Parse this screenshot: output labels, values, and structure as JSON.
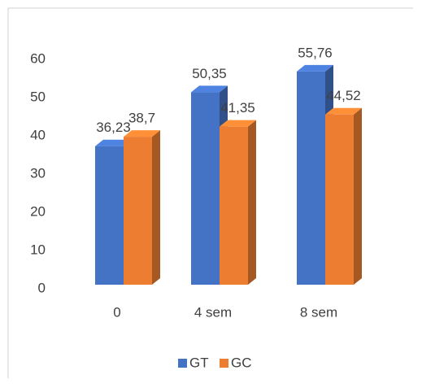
{
  "chart_data": {
    "type": "bar3d",
    "categories": [
      "0",
      "4 sem",
      "8 sem"
    ],
    "series": [
      {
        "name": "GT",
        "color": "#4472c4",
        "values": [
          36.23,
          50.35,
          55.76
        ],
        "value_labels": [
          "36,23",
          "50,35",
          "55,76"
        ]
      },
      {
        "name": "GC",
        "color": "#ed7d31",
        "values": [
          38.7,
          41.35,
          44.52
        ],
        "value_labels": [
          "38,7",
          "41,35",
          "44,52"
        ]
      }
    ],
    "ylim": [
      0,
      60
    ],
    "yticks": [
      0,
      10,
      20,
      30,
      40,
      50,
      60
    ],
    "grid": false,
    "legend": "bottom"
  }
}
